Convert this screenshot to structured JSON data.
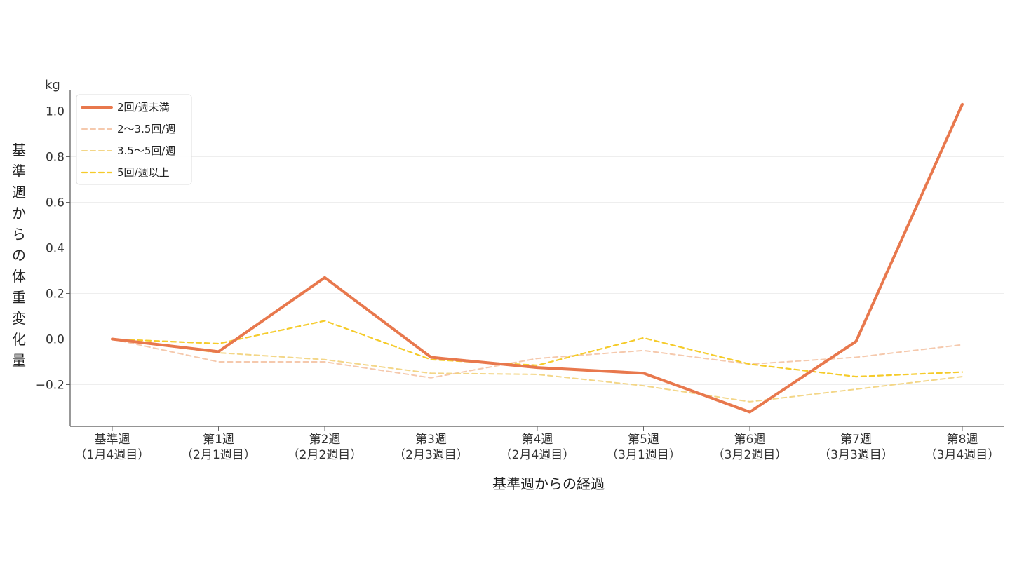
{
  "chart_data": {
    "type": "line",
    "title": "",
    "unit_label": "kg",
    "xlabel": "基準週からの経過",
    "ylabel": "基準週からの体重変化量",
    "categories": [
      [
        "基準週",
        "（1月4週目）"
      ],
      [
        "第1週",
        "（2月1週目）"
      ],
      [
        "第2週",
        "（2月2週目）"
      ],
      [
        "第3週",
        "（2月3週目）"
      ],
      [
        "第4週",
        "（2月4週目）"
      ],
      [
        "第5週",
        "（3月1週目）"
      ],
      [
        "第6週",
        "（3月2週目）"
      ],
      [
        "第7週",
        "（3月3週目）"
      ],
      [
        "第8週",
        "（3月4週目）"
      ]
    ],
    "ylim": [
      -0.38,
      1.1
    ],
    "yticks": [
      -0.2,
      0.0,
      0.2,
      0.4,
      0.6,
      0.8,
      1.0
    ],
    "ytick_labels": [
      "−0.2",
      "0.0",
      "0.2",
      "0.4",
      "0.6",
      "0.8",
      "1.0"
    ],
    "grid": "horizontal",
    "legend_position": "top-left",
    "series": [
      {
        "name": "2回/週未満",
        "color": "#E8784D",
        "style": "solid",
        "width": 4,
        "opacity": 1,
        "values": [
          0.0,
          -0.055,
          0.27,
          -0.08,
          -0.125,
          -0.15,
          -0.32,
          -0.01,
          1.03
        ]
      },
      {
        "name": "2〜3.5回/週",
        "color": "#F3C09F",
        "style": "dashed",
        "width": 2,
        "opacity": 0.85,
        "values": [
          0.0,
          -0.1,
          -0.1,
          -0.17,
          -0.085,
          -0.05,
          -0.11,
          -0.08,
          -0.025
        ]
      },
      {
        "name": "3.5〜5回/週",
        "color": "#F2D27A",
        "style": "dashed",
        "width": 2,
        "opacity": 0.9,
        "values": [
          0.0,
          -0.06,
          -0.09,
          -0.15,
          -0.155,
          -0.205,
          -0.275,
          -0.22,
          -0.165
        ]
      },
      {
        "name": "5回/週以上",
        "color": "#F5CB2A",
        "style": "dashed",
        "width": 2.2,
        "opacity": 1,
        "values": [
          0.0,
          -0.02,
          0.08,
          -0.09,
          -0.115,
          0.005,
          -0.11,
          -0.165,
          -0.145
        ]
      }
    ]
  }
}
